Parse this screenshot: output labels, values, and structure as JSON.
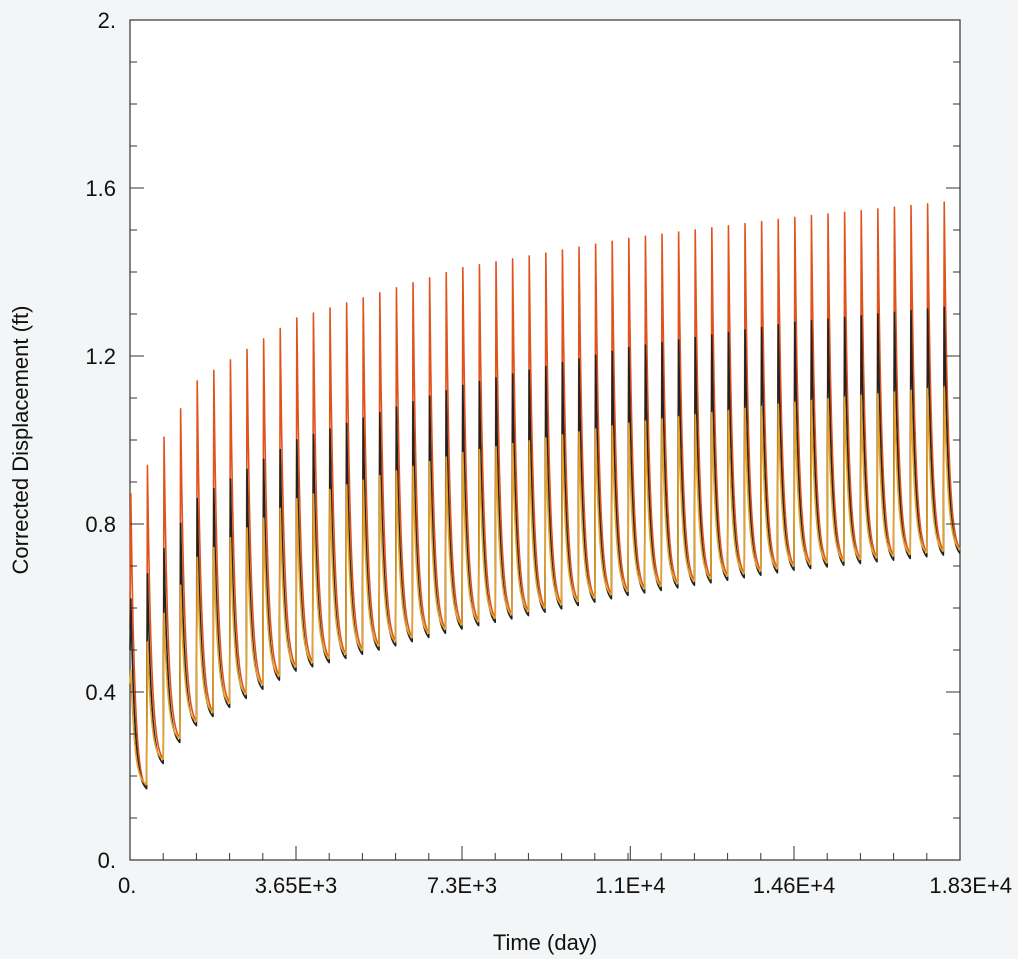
{
  "chart_data": {
    "type": "line",
    "xlabel": "Time (day)",
    "ylabel": "Corrected Displacement (ft)",
    "xlim": [
      0,
      18250
    ],
    "ylim": [
      0,
      2.0
    ],
    "grid": false,
    "x_ticks": [
      {
        "value": 0,
        "label": "0."
      },
      {
        "value": 3650,
        "label": "3.65E+3"
      },
      {
        "value": 7300,
        "label": "7.3E+3"
      },
      {
        "value": 11000,
        "label": "1.1E+4"
      },
      {
        "value": 14600,
        "label": "1.46E+4"
      },
      {
        "value": 18250,
        "label": "1.83E+4"
      }
    ],
    "y_ticks": [
      {
        "value": 0,
        "label": "0."
      },
      {
        "value": 0.4,
        "label": "0.4"
      },
      {
        "value": 0.8,
        "label": "0.8"
      },
      {
        "value": 1.2,
        "label": "1.2"
      },
      {
        "value": 1.6,
        "label": "1.6"
      },
      {
        "value": 2.0,
        "label": "2."
      }
    ],
    "cycles": 50,
    "cycle_period": 365,
    "series": [
      {
        "color": "#e0531c",
        "peak_x": [
          0,
          1460,
          3650,
          7300,
          10950,
          14600,
          18250
        ],
        "peak_y": [
          0.87,
          1.14,
          1.29,
          1.41,
          1.48,
          1.53,
          1.57
        ],
        "trough_x": [
          0,
          365,
          730,
          1095,
          1460,
          3650,
          7300,
          10950,
          14600,
          18250
        ],
        "trough_y": [
          0.55,
          0.17,
          0.24,
          0.29,
          0.33,
          0.46,
          0.56,
          0.64,
          0.7,
          0.74
        ]
      },
      {
        "color": "#222222",
        "peak_x": [
          0,
          1460,
          3650,
          7300,
          10950,
          14600,
          18250
        ],
        "peak_y": [
          0.62,
          0.86,
          1.0,
          1.13,
          1.22,
          1.28,
          1.32
        ],
        "trough_x": [
          0,
          365,
          730,
          1095,
          1460,
          3650,
          7300,
          10950,
          14600,
          18250
        ],
        "trough_y": [
          0.5,
          0.17,
          0.23,
          0.28,
          0.32,
          0.45,
          0.55,
          0.63,
          0.69,
          0.73
        ]
      },
      {
        "color": "#e3a22a",
        "peak_x": [
          0,
          1460,
          3650,
          7300,
          10950,
          14600,
          18250
        ],
        "peak_y": [
          0.45,
          0.72,
          0.86,
          0.97,
          1.04,
          1.09,
          1.13
        ],
        "trough_x": [
          0,
          365,
          730,
          1095,
          1460,
          3650,
          7300,
          10950,
          14600,
          18250
        ],
        "trough_y": [
          0.42,
          0.18,
          0.24,
          0.29,
          0.33,
          0.46,
          0.56,
          0.64,
          0.7,
          0.74
        ]
      }
    ]
  }
}
